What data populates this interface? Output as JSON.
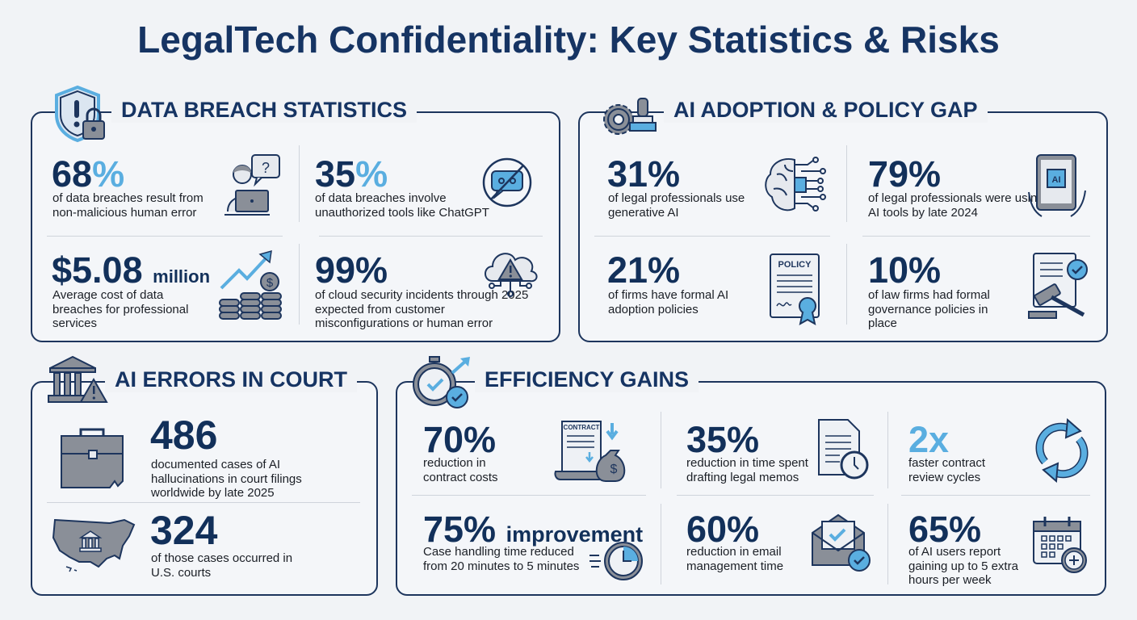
{
  "title": "LegalTech Confidentiality: Key Statistics & Risks",
  "colors": {
    "navy": "#12305a",
    "accent": "#5aaee0",
    "gray": "#8a8f98",
    "background": "#f1f3f6"
  },
  "sections": {
    "breach": {
      "heading": "DATA BREACH STATISTICS",
      "icon": "shield-lock-icon",
      "stats": [
        {
          "value": "68",
          "accent": "%",
          "text": "of data breaches result from non-malicious human error",
          "icon": "person-laptop-question-icon"
        },
        {
          "value": "35",
          "accent": "%",
          "text": "of data breaches involve unauthorized tools like ChatGPT",
          "icon": "chat-prohibited-icon"
        },
        {
          "value": "$5.08",
          "suffix": "million",
          "text": "Average cost of data breaches for professional services",
          "icon": "rising-coins-icon"
        },
        {
          "value": "99%",
          "text": "of cloud security incidents through 2025 expected from customer misconfigurations or human error",
          "icon": "cloud-warning-icon"
        }
      ]
    },
    "adoption": {
      "heading": "AI ADOPTION & POLICY GAP",
      "icon": "gear-stamp-icon",
      "stats": [
        {
          "value": "31%",
          "text": "of legal professionals use generative AI",
          "icon": "brain-circuit-icon"
        },
        {
          "value": "79%",
          "text": "of legal professionals were using AI tools by late 2024",
          "icon": "tablet-ai-icon"
        },
        {
          "value": "21%",
          "text": "of firms have formal AI adoption policies",
          "icon": "policy-document-icon",
          "icon_label": "POLICY"
        },
        {
          "value": "10%",
          "text": "of law firms had formal governance policies in place",
          "icon": "gavel-document-icon"
        }
      ]
    },
    "court": {
      "heading": "AI ERRORS IN COURT",
      "icon": "courthouse-warning-icon",
      "stats": [
        {
          "value": "486",
          "text": "documented cases of AI hallucinations in court filings worldwide by late 2025",
          "icon": "briefcase-icon"
        },
        {
          "value": "324",
          "text": "of those cases occurred in U.S. courts",
          "icon": "us-map-courthouse-icon"
        }
      ]
    },
    "efficiency": {
      "heading": "EFFICIENCY GAINS",
      "icon": "stopwatch-check-icon",
      "stats": [
        {
          "value": "70%",
          "text": "reduction in contract costs",
          "icon": "contract-money-icon",
          "icon_label": "CONTRACT"
        },
        {
          "value": "35%",
          "text": "reduction in time spent drafting legal memos",
          "icon": "document-clock-icon"
        },
        {
          "value": "2x",
          "text": "faster contract review cycles",
          "icon": "refresh-cycle-icon"
        },
        {
          "value": "75%",
          "suffix": "improvement",
          "text": "Case handling time reduced from 20 minutes to 5 minutes",
          "icon": "fast-clock-icon"
        },
        {
          "value": "60%",
          "text": "reduction in email management time",
          "icon": "email-check-icon"
        },
        {
          "value": "65%",
          "text": "of AI users report gaining up to 5 extra hours per week",
          "icon": "calendar-add-icon"
        }
      ]
    }
  }
}
